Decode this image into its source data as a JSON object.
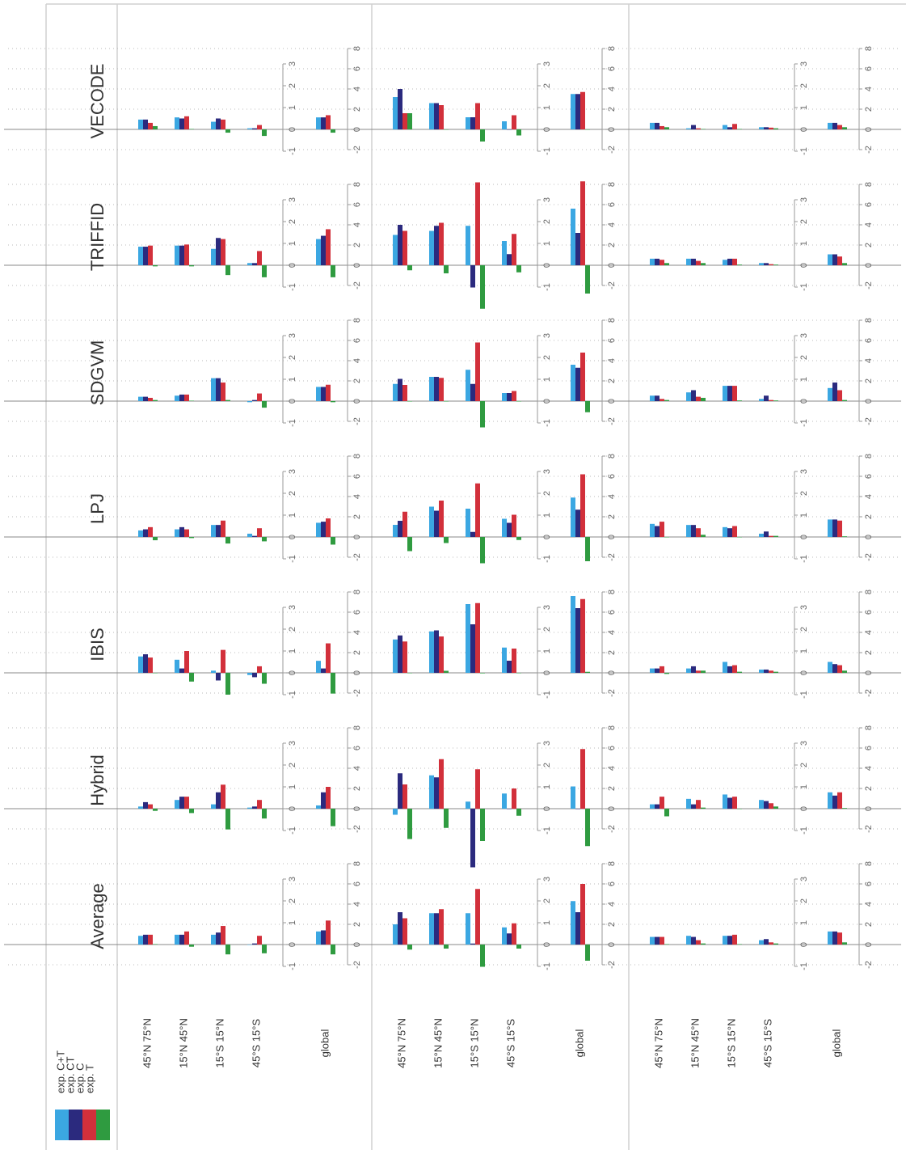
{
  "chart_data": {
    "type": "bar",
    "series": [
      {
        "name": "exp. C+T",
        "color": "#3ba7e2"
      },
      {
        "name": "exp. CT",
        "color": "#2b2a7e"
      },
      {
        "name": "exp. C",
        "color": "#d2303b"
      },
      {
        "name": "exp. T",
        "color": "#2f9b40"
      }
    ],
    "models": [
      "VECODE",
      "TRIFFID",
      "SDGVM",
      "LPJ",
      "IBIS",
      "Hybrid",
      "Average"
    ],
    "ylim": [
      -1,
      3
    ],
    "yticks": [
      -1,
      0,
      1,
      2,
      3
    ],
    "y2lim": [
      -2,
      8
    ],
    "y2ticks": [
      -2,
      0,
      2,
      4,
      6,
      8
    ],
    "grid": true,
    "groups": [
      {
        "axis": "y",
        "regions": [
          "45°N 75°N",
          "15°N 45°N",
          "15°S 15°N",
          "45°S 15°S",
          "global"
        ],
        "values": [
          [
            [
              0.45,
              0.45,
              0.3,
              0.15
            ],
            [
              0.55,
              0.5,
              0.6,
              0.02
            ],
            [
              0.35,
              0.5,
              0.45,
              -0.15
            ],
            [
              0.05,
              0.05,
              0.2,
              -0.3
            ],
            [
              0.55,
              0.55,
              0.65,
              -0.15
            ]
          ],
          [
            [
              0.85,
              0.85,
              0.9,
              -0.05
            ],
            [
              0.9,
              0.9,
              0.95,
              -0.05
            ],
            [
              0.75,
              1.25,
              1.2,
              -0.45
            ],
            [
              0.1,
              0.1,
              0.65,
              -0.55
            ],
            [
              1.2,
              1.35,
              1.65,
              -0.55
            ]
          ],
          [
            [
              0.2,
              0.2,
              0.15,
              0.05
            ],
            [
              0.25,
              0.3,
              0.3,
              0.02
            ],
            [
              1.05,
              1.05,
              0.85,
              0.05
            ],
            [
              -0.05,
              0.05,
              0.35,
              -0.3
            ],
            [
              0.65,
              0.65,
              0.75,
              -0.05
            ]
          ],
          [
            [
              0.3,
              0.35,
              0.45,
              -0.15
            ],
            [
              0.35,
              0.45,
              0.35,
              -0.05
            ],
            [
              0.55,
              0.55,
              0.75,
              -0.3
            ],
            [
              0.15,
              0.05,
              0.4,
              -0.2
            ],
            [
              0.65,
              0.7,
              0.85,
              -0.35
            ]
          ],
          [
            [
              0.75,
              0.85,
              0.7,
              0
            ],
            [
              0.6,
              0.2,
              1.0,
              -0.4
            ],
            [
              0.1,
              -0.35,
              1.05,
              -1.0
            ],
            [
              -0.1,
              -0.2,
              0.3,
              -0.5
            ],
            [
              0.55,
              0.2,
              1.35,
              -0.95
            ]
          ],
          [
            [
              0.1,
              0.3,
              0.2,
              -0.1
            ],
            [
              0.4,
              0.55,
              0.55,
              -0.2
            ],
            [
              0.2,
              0.75,
              1.1,
              -0.95
            ],
            [
              0.05,
              0.1,
              0.4,
              -0.45
            ],
            [
              0.15,
              0.75,
              1.0,
              -0.8
            ]
          ],
          [
            [
              0.4,
              0.45,
              0.45,
              0.02
            ],
            [
              0.45,
              0.45,
              0.6,
              -0.1
            ],
            [
              0.45,
              0.55,
              0.85,
              -0.45
            ],
            [
              0,
              0.05,
              0.4,
              -0.4
            ],
            [
              0.6,
              0.65,
              1.1,
              -0.45
            ]
          ]
        ]
      },
      {
        "axis": "y2",
        "regions": [
          "45°N 75°N",
          "15°N 45°N",
          "15°S 15°N",
          "45°S 15°S",
          "global"
        ],
        "values": [
          [
            [
              3.2,
              4.0,
              1.6,
              1.6
            ],
            [
              2.6,
              2.6,
              2.4,
              0
            ],
            [
              1.2,
              1.2,
              2.6,
              -1.2
            ],
            [
              0.8,
              0,
              1.4,
              -0.6
            ],
            [
              3.5,
              3.5,
              3.7,
              0
            ]
          ],
          [
            [
              3.0,
              4.0,
              3.4,
              -0.5
            ],
            [
              3.4,
              3.9,
              4.2,
              -0.8
            ],
            [
              3.9,
              -2.2,
              8.2,
              -4.3
            ],
            [
              2.4,
              1.1,
              3.1,
              -0.7
            ],
            [
              5.6,
              3.2,
              8.3,
              -2.8
            ]
          ],
          [
            [
              1.7,
              2.2,
              1.6,
              0
            ],
            [
              2.4,
              2.4,
              2.3,
              0
            ],
            [
              3.1,
              1.7,
              5.8,
              -2.6
            ],
            [
              0.8,
              0.8,
              1.0,
              0
            ],
            [
              3.6,
              3.3,
              4.8,
              -1.1
            ]
          ],
          [
            [
              1.2,
              1.6,
              2.5,
              -1.4
            ],
            [
              3.0,
              2.6,
              3.6,
              -0.6
            ],
            [
              2.8,
              0.5,
              5.3,
              -2.6
            ],
            [
              1.8,
              1.4,
              2.2,
              -0.3
            ],
            [
              3.9,
              2.7,
              6.2,
              -2.4
            ]
          ],
          [
            [
              3.3,
              3.7,
              3.1,
              0
            ],
            [
              4.1,
              4.2,
              3.6,
              0.2
            ],
            [
              6.8,
              4.8,
              6.9,
              -0.05
            ],
            [
              2.5,
              1.2,
              2.4,
              0
            ],
            [
              7.6,
              6.4,
              7.3,
              0.1
            ]
          ],
          [
            [
              -0.6,
              3.5,
              2.4,
              -3.0
            ],
            [
              3.3,
              3.1,
              4.9,
              -1.9
            ],
            [
              0.7,
              -5.8,
              3.9,
              -3.2
            ],
            [
              1.5,
              0,
              2.0,
              -0.7
            ],
            [
              2.2,
              0,
              5.9,
              -3.7
            ]
          ],
          [
            [
              2.0,
              3.2,
              2.6,
              -0.5
            ],
            [
              3.1,
              3.1,
              3.5,
              -0.4
            ],
            [
              3.1,
              0.1,
              5.5,
              -2.2
            ],
            [
              1.7,
              1.1,
              2.1,
              -0.4
            ],
            [
              4.3,
              3.2,
              6.0,
              -1.6
            ]
          ]
        ]
      },
      {
        "axis": "y",
        "regions": [
          "45°N 75°N",
          "15°N 45°N",
          "15°S 15°N",
          "45°S 15°S",
          "global"
        ],
        "values": [
          [
            [
              0.3,
              0.3,
              0.15,
              0.1
            ],
            [
              0.05,
              0.2,
              0.05,
              0.02
            ],
            [
              0.2,
              0.1,
              0.25,
              0.02
            ],
            [
              0.1,
              0.1,
              0.08,
              0.05
            ],
            [
              0.3,
              0.3,
              0.2,
              0.1
            ]
          ],
          [
            [
              0.3,
              0.3,
              0.25,
              0.1
            ],
            [
              0.3,
              0.3,
              0.2,
              0.1
            ],
            [
              0.25,
              0.3,
              0.3,
              0.03
            ],
            [
              0.1,
              0.1,
              0.05,
              0.03
            ],
            [
              0.5,
              0.5,
              0.4,
              0.1
            ]
          ],
          [
            [
              0.25,
              0.25,
              0.1,
              0.05
            ],
            [
              0.4,
              0.5,
              0.2,
              0.15
            ],
            [
              0.7,
              0.7,
              0.7,
              0.03
            ],
            [
              0.1,
              0.25,
              0.05,
              0.03
            ],
            [
              0.6,
              0.85,
              0.5,
              0.05
            ]
          ],
          [
            [
              0.6,
              0.5,
              0.7,
              0
            ],
            [
              0.55,
              0.55,
              0.4,
              0.1
            ],
            [
              0.45,
              0.4,
              0.5,
              0
            ],
            [
              0.15,
              0.25,
              0.05,
              0.05
            ],
            [
              0.8,
              0.8,
              0.75,
              0.03
            ]
          ],
          [
            [
              0.2,
              0.2,
              0.3,
              -0.05
            ],
            [
              0.2,
              0.3,
              0.1,
              0.1
            ],
            [
              0.5,
              0.3,
              0.35,
              0.05
            ],
            [
              0.15,
              0.15,
              0.1,
              0.05
            ],
            [
              0.5,
              0.4,
              0.35,
              0.1
            ]
          ],
          [
            [
              0.2,
              0.2,
              0.55,
              -0.35
            ],
            [
              0.45,
              0.2,
              0.4,
              0.05
            ],
            [
              0.65,
              0.5,
              0.55,
              0
            ],
            [
              0.4,
              0.35,
              0.25,
              0.1
            ],
            [
              0.75,
              0.6,
              0.75,
              0.03
            ]
          ],
          [
            [
              0.35,
              0.35,
              0.35,
              0.02
            ],
            [
              0.4,
              0.35,
              0.2,
              0.05
            ],
            [
              0.4,
              0.4,
              0.45,
              0.02
            ],
            [
              0.2,
              0.25,
              0.1,
              0.05
            ],
            [
              0.6,
              0.6,
              0.55,
              0.1
            ]
          ]
        ]
      }
    ]
  }
}
